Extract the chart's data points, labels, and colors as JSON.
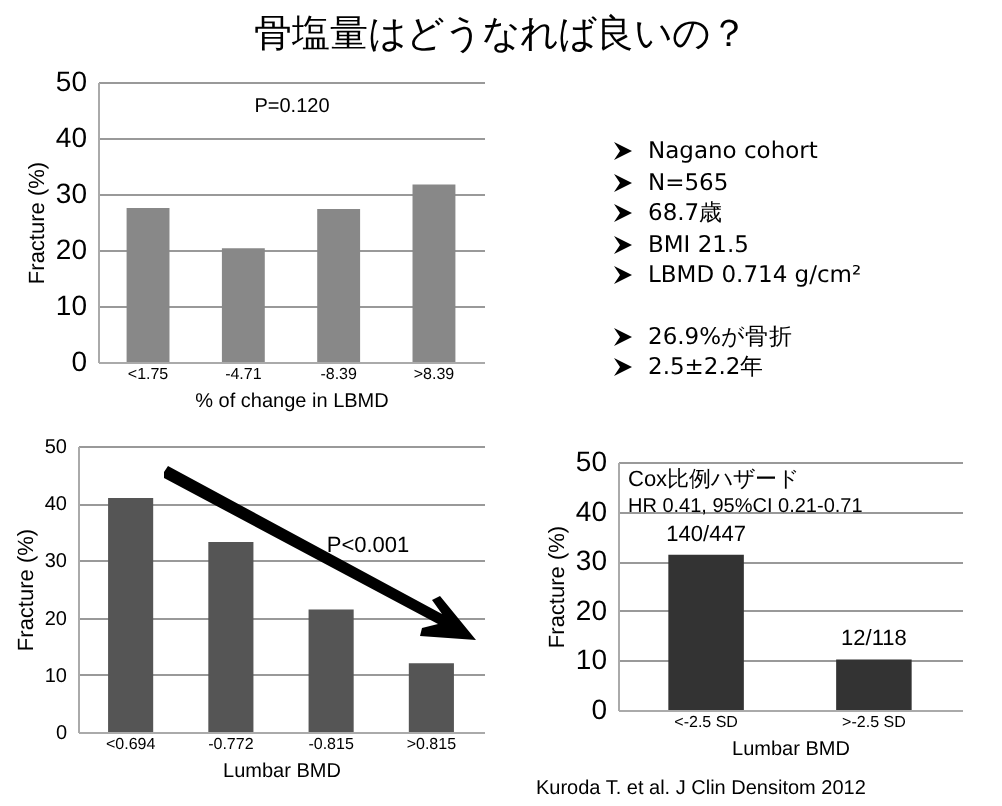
{
  "chart_data": [
    {
      "type": "bar",
      "title": "骨塩量はどうなれば良いの？",
      "categories": [
        "<1.75",
        "-4.71",
        "-8.39",
        ">8.39"
      ],
      "values": [
        27.5,
        20.3,
        27.3,
        31.7
      ],
      "color": "#888888",
      "ylim": [
        0,
        50
      ],
      "yticks": [
        0,
        10,
        20,
        30,
        40,
        50
      ],
      "ylabel": "Fracture (%)",
      "xlabel": "% of change in LBMD",
      "grid": "y",
      "annotations": [
        "P=0.120"
      ]
    },
    {
      "type": "other",
      "annotations": [
        "Nagano cohort",
        "N=565",
        "68.7歳",
        "BMI 21.5",
        "LBMD 0.714 g/cm²",
        "26.9%が骨折",
        "2.5±2.2年"
      ]
    },
    {
      "type": "bar",
      "categories": [
        "<0.694",
        "-0.772",
        "-0.815",
        ">0.815"
      ],
      "values": [
        40.9,
        33.2,
        21.4,
        12.0
      ],
      "color": "#555555",
      "ylim": [
        0,
        50
      ],
      "yticks": [
        0,
        10,
        20,
        30,
        40,
        50
      ],
      "ylabel": "Fracture (%)",
      "xlabel": "Lumbar BMD",
      "grid": "y",
      "annotations": [
        "P<0.001"
      ]
    },
    {
      "type": "bar",
      "categories": [
        "<-2.5 SD",
        ">-2.5 SD"
      ],
      "values": [
        31.3,
        10.2
      ],
      "value_labels": [
        "140/447",
        "12/118"
      ],
      "color": "#333333",
      "ylim": [
        0,
        50
      ],
      "yticks": [
        0,
        10,
        20,
        30,
        40,
        50
      ],
      "ylabel": "Fracture (%)",
      "xlabel": "Lumbar BMD",
      "grid": "y",
      "annotations": [
        "Cox比例ハザード",
        "HR 0.41, 95%CI 0.21-0.71",
        "Kuroda T. et al. J Clin Densitom 2012"
      ]
    }
  ]
}
